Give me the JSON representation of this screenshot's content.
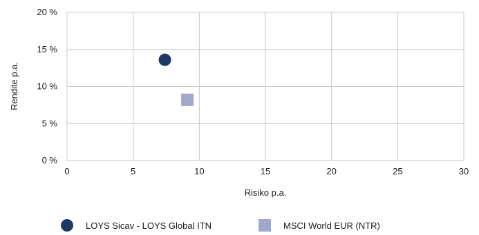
{
  "chart_data": {
    "type": "scatter",
    "xlabel": "Risiko p.a.",
    "ylabel": "Rendite p.a.",
    "xlim": [
      0,
      30
    ],
    "ylim": [
      0,
      20
    ],
    "x_ticks": [
      0,
      5,
      10,
      15,
      20,
      25,
      30
    ],
    "y_ticks": [
      0,
      5,
      10,
      15,
      20
    ],
    "x_tick_labels": [
      "0",
      "5",
      "10",
      "15",
      "20",
      "25",
      "30"
    ],
    "y_tick_labels": [
      "0 %",
      "5 %",
      "10 %",
      "15 %",
      "20 %"
    ],
    "grid": true,
    "legend_position": "bottom",
    "series": [
      {
        "name": "LOYS Sicav - LOYS Global ITN",
        "marker": "circle",
        "color": "#1f3864",
        "x": [
          7.4
        ],
        "y": [
          13.6
        ]
      },
      {
        "name": "MSCI World EUR (NTR)",
        "marker": "square",
        "color": "#a2a8cb",
        "x": [
          9.1
        ],
        "y": [
          8.2
        ]
      }
    ]
  }
}
